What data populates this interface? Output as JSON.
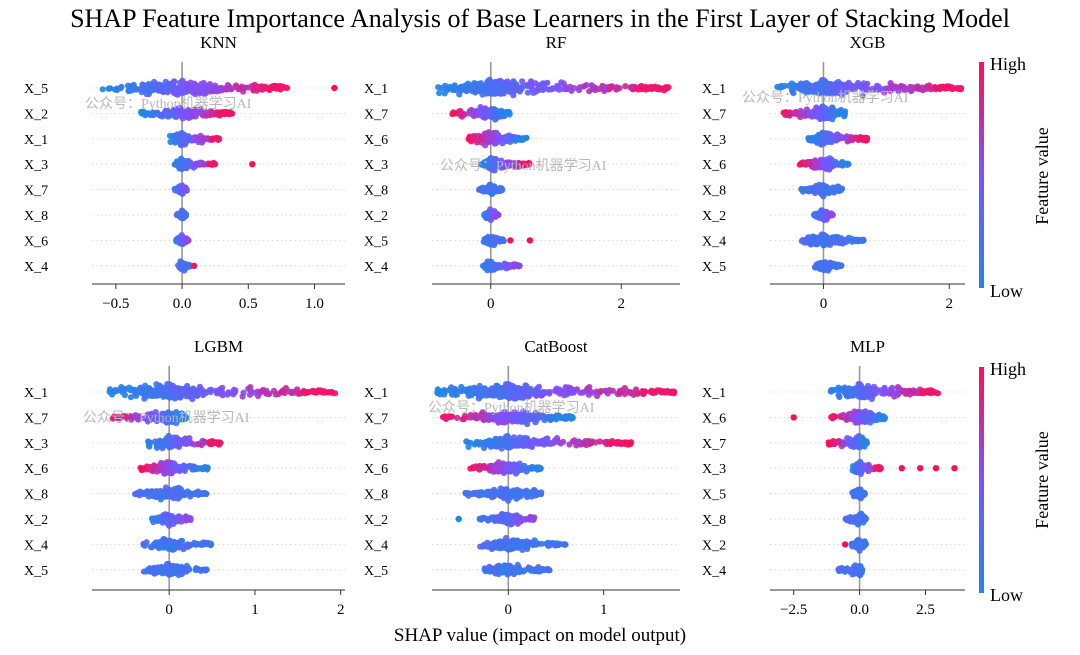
{
  "chart_data": {
    "type": "scatter",
    "title": "SHAP Feature Importance Analysis of Base Learners in the First Layer of Stacking Model",
    "xlabel": "SHAP value (impact on model output)",
    "colorbar": {
      "label": "Feature value",
      "high": "High",
      "low": "Low"
    },
    "watermark": "公众号：Python机器学习AI",
    "colors": {
      "low": "#1e88e5",
      "high": "#ff0d57",
      "zero_line": "#999999",
      "grid": "#cccccc"
    },
    "panels": [
      {
        "name": "KNN",
        "features": [
          "X_5",
          "X_2",
          "X_1",
          "X_3",
          "X_7",
          "X_8",
          "X_6",
          "X_4"
        ],
        "xlim": [
          -0.68,
          1.23
        ],
        "xticks": [
          -0.5,
          0.0,
          0.5,
          1.0
        ],
        "xticklabels": [
          "−0.5",
          "0.0",
          "0.5",
          "1.0"
        ],
        "rows": [
          {
            "min": -0.6,
            "max": 0.8,
            "width": 0.7,
            "outliers": [
              1.15
            ],
            "corr": 1
          },
          {
            "min": -0.32,
            "max": 0.38,
            "width": 0.45,
            "outliers": [],
            "corr": 1
          },
          {
            "min": -0.1,
            "max": 0.28,
            "width": 0.45,
            "outliers": [],
            "corr": 1
          },
          {
            "min": -0.06,
            "max": 0.25,
            "width": 0.35,
            "outliers": [
              0.53
            ],
            "corr": 1
          },
          {
            "min": -0.06,
            "max": 0.04,
            "width": 0.3,
            "outliers": [],
            "corr": 0.5
          },
          {
            "min": -0.04,
            "max": 0.03,
            "width": 0.22,
            "outliers": [],
            "corr": 0
          },
          {
            "min": -0.05,
            "max": 0.05,
            "width": 0.3,
            "outliers": [],
            "corr": 0.6
          },
          {
            "min": -0.03,
            "max": 0.06,
            "width": 0.25,
            "outliers": [
              0.09
            ],
            "corr": 0
          }
        ]
      },
      {
        "name": "RF",
        "features": [
          "X_1",
          "X_7",
          "X_6",
          "X_3",
          "X_8",
          "X_2",
          "X_5",
          "X_4"
        ],
        "xlim": [
          -0.9,
          2.9
        ],
        "xticks": [
          0,
          2
        ],
        "xticklabels": [
          "0",
          "2"
        ],
        "rows": [
          {
            "min": -0.85,
            "max": 2.75,
            "width": 0.7,
            "outliers": [],
            "corr": 1
          },
          {
            "min": -0.62,
            "max": 0.3,
            "width": 0.55,
            "outliers": [],
            "corr": -1
          },
          {
            "min": -0.35,
            "max": 0.55,
            "width": 0.5,
            "outliers": [],
            "corr": -1
          },
          {
            "min": -0.15,
            "max": 0.6,
            "width": 0.45,
            "outliers": [],
            "corr": 1
          },
          {
            "min": -0.18,
            "max": 0.18,
            "width": 0.3,
            "outliers": [],
            "corr": 0
          },
          {
            "min": -0.12,
            "max": 0.12,
            "width": 0.35,
            "outliers": [],
            "corr": 0.6
          },
          {
            "min": -0.12,
            "max": 0.2,
            "width": 0.3,
            "outliers": [
              0.3,
              0.6
            ],
            "corr": 0
          },
          {
            "min": -0.12,
            "max": 0.45,
            "width": 0.3,
            "outliers": [],
            "corr": 0.6
          }
        ]
      },
      {
        "name": "XGB",
        "features": [
          "X_1",
          "X_7",
          "X_3",
          "X_6",
          "X_8",
          "X_2",
          "X_4",
          "X_5"
        ],
        "xlim": [
          -0.85,
          2.25
        ],
        "xticks": [
          0,
          2
        ],
        "xticklabels": [
          "0",
          "2"
        ],
        "rows": [
          {
            "min": -0.75,
            "max": 2.2,
            "width": 0.7,
            "outliers": [],
            "corr": 1
          },
          {
            "min": -0.65,
            "max": 0.35,
            "width": 0.55,
            "outliers": [],
            "corr": -1
          },
          {
            "min": -0.25,
            "max": 0.7,
            "width": 0.5,
            "outliers": [],
            "corr": 1
          },
          {
            "min": -0.38,
            "max": 0.4,
            "width": 0.5,
            "outliers": [],
            "corr": -1
          },
          {
            "min": -0.35,
            "max": 0.3,
            "width": 0.4,
            "outliers": [],
            "corr": 0
          },
          {
            "min": -0.15,
            "max": 0.15,
            "width": 0.35,
            "outliers": [],
            "corr": 0.6
          },
          {
            "min": -0.35,
            "max": 0.65,
            "width": 0.35,
            "outliers": [],
            "corr": 0
          },
          {
            "min": -0.15,
            "max": 0.3,
            "width": 0.3,
            "outliers": [],
            "corr": 0
          }
        ]
      },
      {
        "name": "LGBM",
        "features": [
          "X_1",
          "X_7",
          "X_3",
          "X_6",
          "X_8",
          "X_2",
          "X_4",
          "X_5"
        ],
        "xlim": [
          -0.9,
          2.05
        ],
        "xticks": [
          0,
          1,
          2
        ],
        "xticklabels": [
          "0",
          "1",
          "2"
        ],
        "rows": [
          {
            "min": -0.7,
            "max": 1.95,
            "width": 0.7,
            "outliers": [],
            "corr": 1
          },
          {
            "min": -0.7,
            "max": 0.2,
            "width": 0.45,
            "outliers": [],
            "corr": -1
          },
          {
            "min": -0.25,
            "max": 0.6,
            "width": 0.5,
            "outliers": [],
            "corr": 1
          },
          {
            "min": -0.35,
            "max": 0.45,
            "width": 0.5,
            "outliers": [],
            "corr": -1
          },
          {
            "min": -0.4,
            "max": 0.45,
            "width": 0.45,
            "outliers": [],
            "corr": 0
          },
          {
            "min": -0.2,
            "max": 0.25,
            "width": 0.4,
            "outliers": [],
            "corr": 0.6
          },
          {
            "min": -0.3,
            "max": 0.5,
            "width": 0.4,
            "outliers": [],
            "corr": 0
          },
          {
            "min": -0.3,
            "max": 0.45,
            "width": 0.35,
            "outliers": [],
            "corr": 0
          }
        ]
      },
      {
        "name": "CatBoost",
        "features": [
          "X_1",
          "X_7",
          "X_3",
          "X_6",
          "X_8",
          "X_2",
          "X_4",
          "X_5"
        ],
        "xlim": [
          -0.8,
          1.8
        ],
        "xticks": [
          0,
          1
        ],
        "xticklabels": [
          "0",
          "1"
        ],
        "rows": [
          {
            "min": -0.75,
            "max": 1.75,
            "width": 0.7,
            "outliers": [],
            "corr": 1
          },
          {
            "min": -0.7,
            "max": 0.7,
            "width": 0.55,
            "outliers": [],
            "corr": -1
          },
          {
            "min": -0.45,
            "max": 1.3,
            "width": 0.5,
            "outliers": [],
            "corr": 1
          },
          {
            "min": -0.4,
            "max": 0.35,
            "width": 0.5,
            "outliers": [],
            "corr": -1
          },
          {
            "min": -0.45,
            "max": 0.35,
            "width": 0.45,
            "outliers": [],
            "corr": 0
          },
          {
            "min": -0.3,
            "max": 0.3,
            "width": 0.4,
            "outliers": [
              -0.52
            ],
            "corr": 0.6
          },
          {
            "min": -0.3,
            "max": 0.6,
            "width": 0.4,
            "outliers": [],
            "corr": 0
          },
          {
            "min": -0.25,
            "max": 0.45,
            "width": 0.35,
            "outliers": [],
            "corr": 0
          }
        ]
      },
      {
        "name": "MLP",
        "features": [
          "X_1",
          "X_6",
          "X_7",
          "X_3",
          "X_5",
          "X_8",
          "X_2",
          "X_4"
        ],
        "xlim": [
          -3.4,
          4.0
        ],
        "xticks": [
          -2.5,
          0.0,
          2.5
        ],
        "xticklabels": [
          "−2.5",
          "0.0",
          "2.5"
        ],
        "rows": [
          {
            "min": -1.2,
            "max": 3.0,
            "width": 0.7,
            "outliers": [],
            "corr": 1
          },
          {
            "min": -1.1,
            "max": 1.0,
            "width": 0.55,
            "outliers": [
              -2.5
            ],
            "corr": -1
          },
          {
            "min": -1.2,
            "max": 0.3,
            "width": 0.5,
            "outliers": [],
            "corr": -1
          },
          {
            "min": -0.3,
            "max": 0.8,
            "width": 0.45,
            "outliers": [
              1.6,
              2.3,
              2.9,
              3.6
            ],
            "corr": 1
          },
          {
            "min": -0.3,
            "max": 0.2,
            "width": 0.35,
            "outliers": [],
            "corr": 0
          },
          {
            "min": -0.55,
            "max": 0.25,
            "width": 0.35,
            "outliers": [],
            "corr": 0
          },
          {
            "min": -0.3,
            "max": 0.25,
            "width": 0.35,
            "outliers": [
              -0.55
            ],
            "corr": 0
          },
          {
            "min": -0.8,
            "max": 0.1,
            "width": 0.35,
            "outliers": [],
            "corr": 0
          }
        ]
      }
    ]
  }
}
